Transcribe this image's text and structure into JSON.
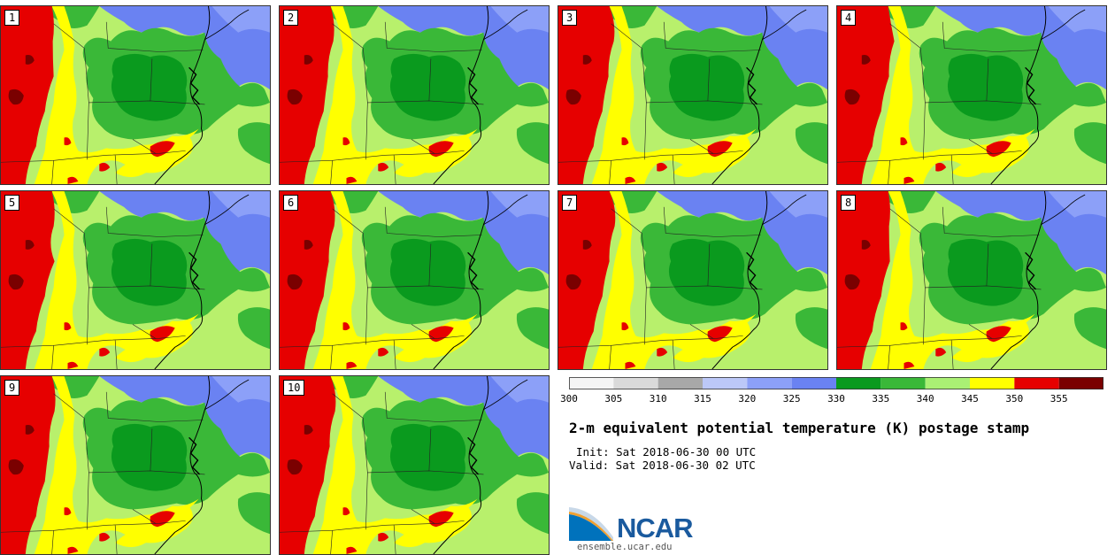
{
  "title": "2-m equivalent potential temperature (K) postage stamp",
  "init": "Init: Sat 2018-06-30 00 UTC",
  "valid": "Valid: Sat 2018-06-30 02 UTC",
  "panels": [
    {
      "label": "1"
    },
    {
      "label": "2"
    },
    {
      "label": "3"
    },
    {
      "label": "4"
    },
    {
      "label": "5"
    },
    {
      "label": "6"
    },
    {
      "label": "7"
    },
    {
      "label": "8"
    },
    {
      "label": "9"
    },
    {
      "label": "10"
    }
  ],
  "legend": {
    "ticks": [
      "300",
      "305",
      "310",
      "315",
      "320",
      "325",
      "330",
      "335",
      "340",
      "345",
      "350",
      "355"
    ],
    "colors": [
      "#f5f5f5",
      "#dadada",
      "#a8a8a8",
      "#bcc8f8",
      "#8ca0f8",
      "#6a82f2",
      "#0a9a1e",
      "#3ab838",
      "#aaf074",
      "#ffff00",
      "#e60000",
      "#7a0000"
    ]
  },
  "logo": {
    "name": "NCAR",
    "url": "ensemble.ucar.edu",
    "colors": {
      "blue": "#1a5a9e",
      "sky": "#0072bc",
      "light": "#c8d8e8"
    }
  },
  "map_colors": {
    "red": "#e60000",
    "dark_red": "#7a0000",
    "yellow": "#ffff00",
    "light_green": "#b8f06c",
    "mid_green": "#3ab838",
    "dark_green": "#0a9a1e",
    "light_blue": "#8ca0f8",
    "blue": "#6a82f2",
    "ocean_green": "#3ab838"
  }
}
